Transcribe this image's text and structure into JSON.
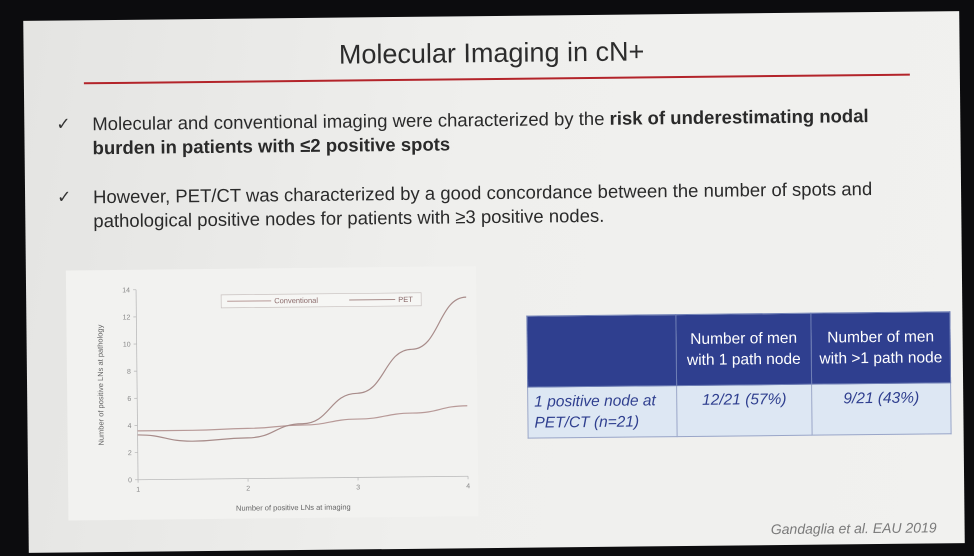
{
  "slide": {
    "title": "Molecular Imaging in cN+",
    "bullets": [
      {
        "check": "✓",
        "text_plain": "Molecular and conventional imaging were characterized by the ",
        "text_bold": "risk of underestimating nodal burden in patients with ≤2 positive spots"
      },
      {
        "check": "✓",
        "text_plain": "However, PET/CT was characterized by a good concordance between the number of spots and pathological positive nodes for patients with ≥3 positive nodes.",
        "text_bold": ""
      }
    ],
    "citation": "Gandaglia et al. EAU 2019"
  },
  "table": {
    "headers": [
      "",
      "Number of men with 1 path node",
      "Number of men with >1 path node"
    ],
    "rows": [
      [
        "1 positive node at PET/CT (n=21)",
        "12/21 (57%)",
        "9/21 (43%)"
      ]
    ]
  },
  "colors": {
    "title_rule": "#b3242a",
    "table_header": "#2f3f8f",
    "table_cell": "#dde7f3",
    "curve": "#b89a98"
  },
  "chart_data": {
    "type": "line",
    "xlabel": "Number of positive LNs at imaging",
    "ylabel": "Number of positive LNs at pathology",
    "xlim": [
      1,
      4
    ],
    "ylim": [
      0,
      14
    ],
    "xticks": [
      "1",
      "2",
      "3",
      "4"
    ],
    "yticks": [
      "0",
      "2",
      "4",
      "6",
      "8",
      "10",
      "12",
      "14"
    ],
    "grid": false,
    "legend_position": "top",
    "series": [
      {
        "name": "Conventional",
        "x": [
          1,
          1.5,
          2,
          2.5,
          3,
          3.5,
          4
        ],
        "values": [
          3.6,
          3.6,
          3.7,
          3.9,
          4.3,
          4.7,
          5.2
        ]
      },
      {
        "name": "PET",
        "x": [
          1,
          1.5,
          2,
          2.5,
          3,
          3.5,
          4
        ],
        "values": [
          3.3,
          2.8,
          3.0,
          4.0,
          6.2,
          9.4,
          13.2
        ]
      }
    ]
  }
}
